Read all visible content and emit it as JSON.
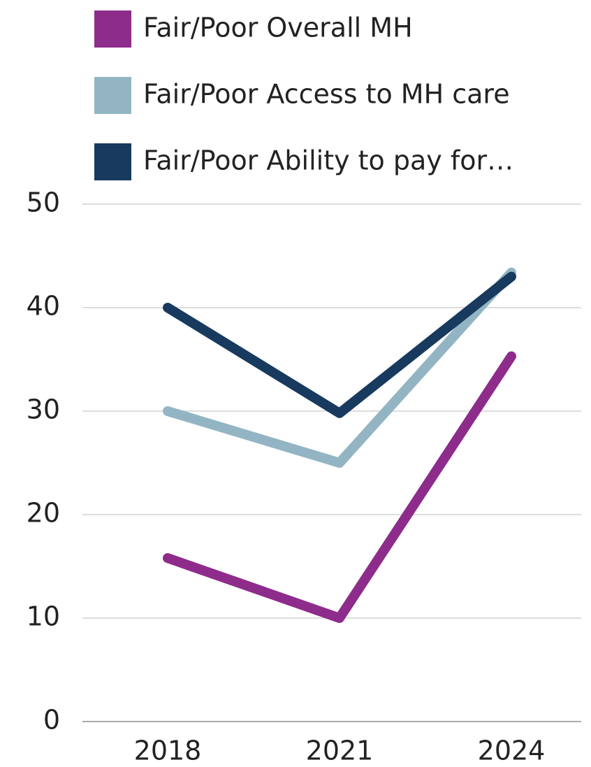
{
  "chart_data": {
    "type": "line",
    "categories": [
      "2018",
      "2021",
      "2024"
    ],
    "series": [
      {
        "name": "Fair/Poor Overall MH",
        "color": "#8e2c8c",
        "values": [
          15.8,
          10,
          35.3
        ]
      },
      {
        "name": "Fair/Poor Access to MH care",
        "color": "#93b5c3",
        "values": [
          30,
          25,
          43.4
        ]
      },
      {
        "name": "Fair/Poor Ability to pay for…",
        "color": "#173a5e",
        "values": [
          40,
          29.8,
          43
        ]
      }
    ],
    "ylim": [
      0,
      50
    ],
    "yticks": [
      0,
      10,
      20,
      30,
      40,
      50
    ],
    "grid": true,
    "legend": "top"
  }
}
